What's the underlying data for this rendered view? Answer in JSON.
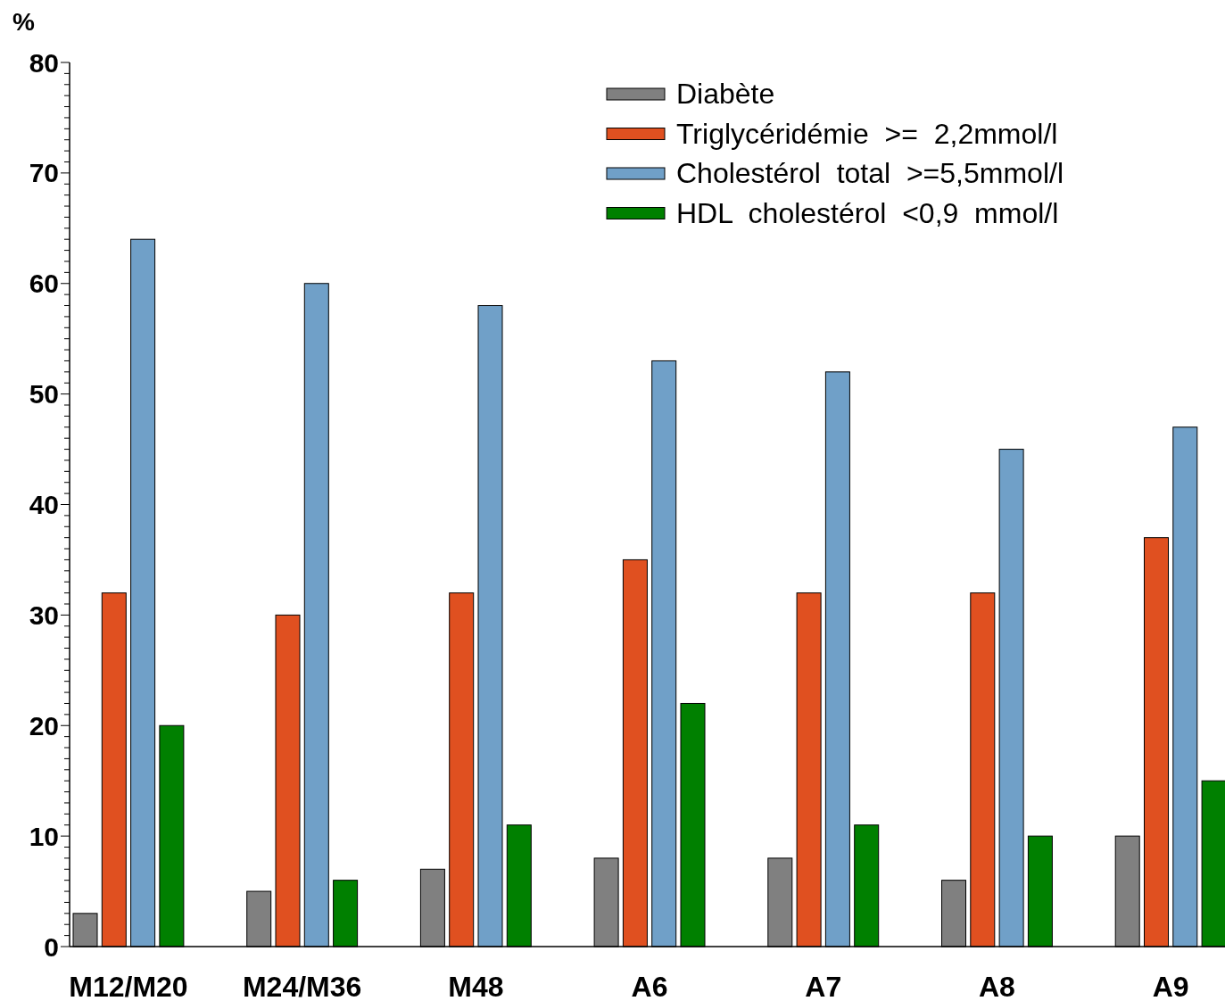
{
  "chart_data": {
    "type": "bar",
    "ylabel": "%",
    "categories": [
      "M12/M20",
      "M24/M36",
      "M48",
      "A6",
      "A7",
      "A8",
      "A9"
    ],
    "series": [
      {
        "name": "Diabète",
        "color": "#808080",
        "values": [
          3,
          5,
          7,
          8,
          8,
          6,
          10
        ]
      },
      {
        "name": "Triglycéridémie  >=  2,2mmol/l",
        "color": "#e05020",
        "values": [
          32,
          30,
          32,
          35,
          32,
          32,
          37
        ]
      },
      {
        "name": "Cholestérol  total  >=5,5mmol/l",
        "color": "#70a0c8",
        "values": [
          64,
          60,
          58,
          53,
          52,
          45,
          47
        ]
      },
      {
        "name": "HDL  cholestérol  <0,9  mmol/l",
        "color": "#008000",
        "values": [
          20,
          6,
          11,
          22,
          11,
          10,
          15
        ]
      }
    ],
    "ylim": [
      0,
      80
    ],
    "yticks": [
      0,
      {
        "value": 1,
        "label": null
      },
      {
        "value": 2,
        "label": null
      },
      {
        "value": 3,
        "label": null
      },
      {
        "value": 4,
        "label": null
      },
      {
        "value": 5,
        "label": null
      },
      {
        "value": 6,
        "label": null
      },
      {
        "value": 7,
        "label": null
      },
      {
        "value": 8,
        "label": null
      },
      {
        "value": 9,
        "label": null
      },
      10,
      {
        "value": 11,
        "label": null
      },
      {
        "value": 12,
        "label": null
      },
      {
        "value": 13,
        "label": null
      },
      {
        "value": 14,
        "label": null
      },
      {
        "value": 15,
        "label": null
      },
      {
        "value": 16,
        "label": null
      },
      {
        "value": 17,
        "label": null
      },
      {
        "value": 18,
        "label": null
      },
      {
        "value": 19,
        "label": null
      },
      20,
      {
        "value": 21,
        "label": null
      },
      {
        "value": 22,
        "label": null
      },
      {
        "value": 23,
        "label": null
      },
      {
        "value": 24,
        "label": null
      },
      {
        "value": 25,
        "label": null
      },
      {
        "value": 26,
        "label": null
      },
      {
        "value": 27,
        "label": null
      },
      {
        "value": 28,
        "label": null
      },
      {
        "value": 29,
        "label": null
      },
      30,
      {
        "value": 31,
        "label": null
      },
      {
        "value": 32,
        "label": null
      },
      {
        "value": 33,
        "label": null
      },
      {
        "value": 34,
        "label": null
      },
      {
        "value": 35,
        "label": null
      },
      {
        "value": 36,
        "label": null
      },
      {
        "value": 37,
        "label": null
      },
      {
        "value": 38,
        "label": null
      },
      {
        "value": 39,
        "label": null
      },
      40,
      {
        "value": 41,
        "label": null
      },
      {
        "value": 42,
        "label": null
      },
      {
        "value": 43,
        "label": null
      },
      {
        "value": 44,
        "label": null
      },
      {
        "value": 45,
        "label": null
      },
      {
        "value": 46,
        "label": null
      },
      {
        "value": 47,
        "label": null
      },
      {
        "value": 48,
        "label": null
      },
      {
        "value": 49,
        "label": null
      },
      50,
      {
        "value": 51,
        "label": null
      },
      {
        "value": 52,
        "label": null
      },
      {
        "value": 53,
        "label": null
      },
      {
        "value": 54,
        "label": null
      },
      {
        "value": 55,
        "label": null
      },
      {
        "value": 56,
        "label": null
      },
      {
        "value": 57,
        "label": null
      },
      {
        "value": 58,
        "label": null
      },
      {
        "value": 59,
        "label": null
      },
      60,
      {
        "value": 61,
        "label": null
      },
      {
        "value": 62,
        "label": null
      },
      {
        "value": 63,
        "label": null
      },
      {
        "value": 64,
        "label": null
      },
      {
        "value": 65,
        "label": null
      },
      {
        "value": 66,
        "label": null
      },
      {
        "value": 67,
        "label": null
      },
      {
        "value": 68,
        "label": null
      },
      {
        "value": 69,
        "label": null
      },
      70,
      {
        "value": 71,
        "label": null
      },
      {
        "value": 72,
        "label": null
      },
      {
        "value": 73,
        "label": null
      },
      {
        "value": 74,
        "label": null
      },
      {
        "value": 75,
        "label": null
      },
      {
        "value": 76,
        "label": null
      },
      {
        "value": 77,
        "label": null
      },
      {
        "value": 78,
        "label": null
      },
      {
        "value": 79,
        "label": null
      },
      80
    ],
    "grid": false,
    "legend": "top right"
  }
}
